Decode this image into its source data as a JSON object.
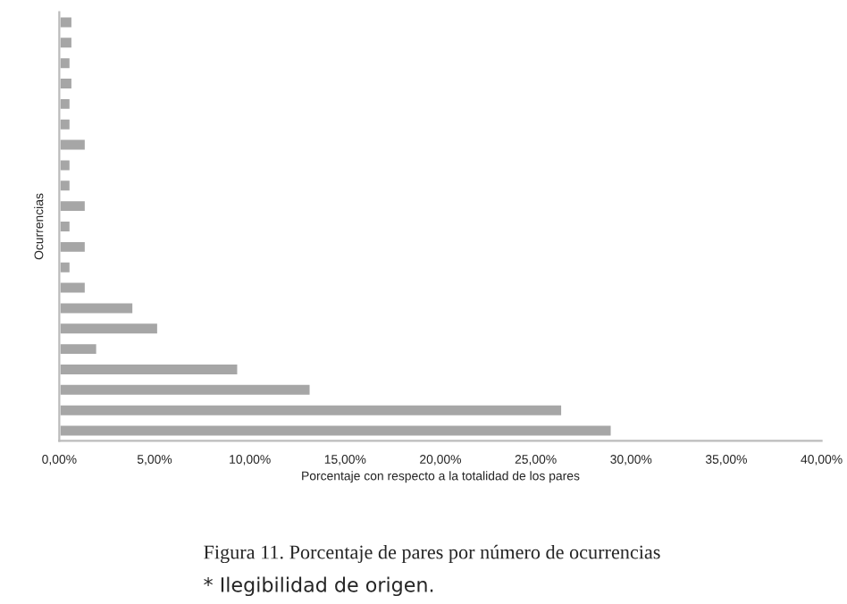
{
  "chart_data": {
    "type": "bar",
    "orientation": "horizontal",
    "title": "Figura 11. Porcentaje de pares por número de ocurrencias",
    "annotations": [
      "* Ilegibilidad de origen."
    ],
    "xlabel": "Porcentaje con respecto a la totalidad de los pares",
    "ylabel": "Ocurrencias",
    "categories": [
      null,
      null,
      null,
      null,
      null,
      null,
      null,
      null,
      null,
      null,
      null,
      null,
      null,
      null,
      null,
      null,
      null,
      null,
      null,
      null,
      null
    ],
    "values": [
      0.7,
      0.7,
      0.6,
      0.7,
      0.6,
      0.6,
      1.4,
      0.6,
      0.6,
      1.4,
      0.6,
      1.4,
      0.6,
      1.4,
      3.9,
      5.2,
      2.0,
      9.4,
      13.2,
      26.4,
      29.0
    ],
    "color": "#a6a6a6",
    "xlim": [
      0,
      40
    ],
    "xticks": [
      {
        "value": 0,
        "label": "0,00%"
      },
      {
        "value": 5,
        "label": "5,00%"
      },
      {
        "value": 10,
        "label": "10,00%"
      },
      {
        "value": 15,
        "label": "15,00%"
      },
      {
        "value": 20,
        "label": "20,00%"
      },
      {
        "value": 25,
        "label": "25,00%"
      },
      {
        "value": 30,
        "label": "30,00%"
      },
      {
        "value": 35,
        "label": "35,00%"
      },
      {
        "value": 40,
        "label": "40,00%"
      }
    ],
    "grid": false
  }
}
